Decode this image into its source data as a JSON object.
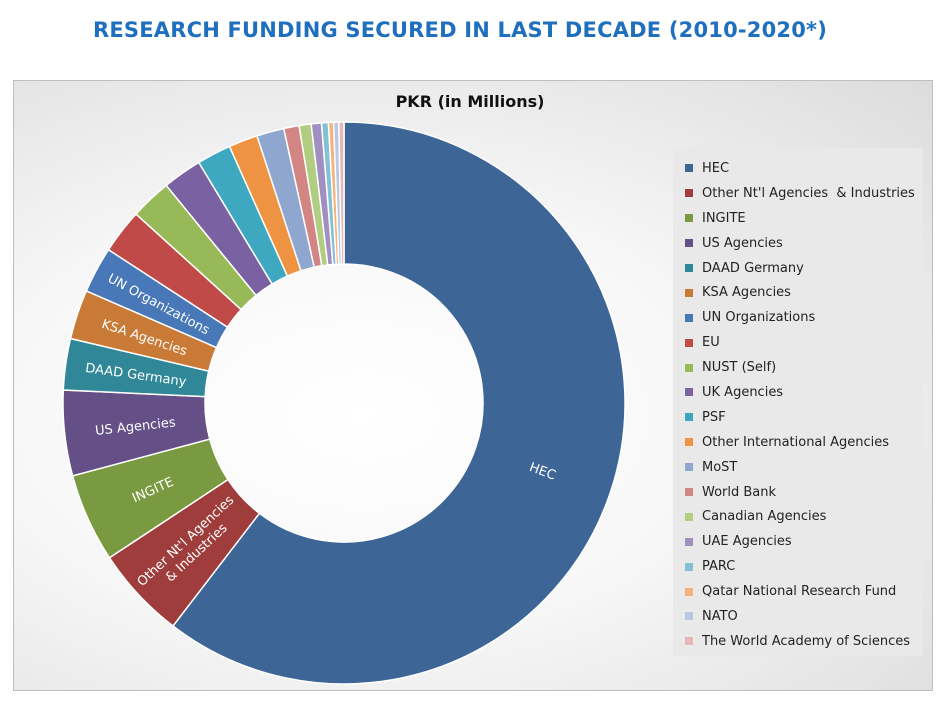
{
  "title": "RESEARCH FUNDING SECURED IN LAST DECADE (2010-2020*)",
  "chart_data": {
    "type": "pie",
    "title": "PKR (in Millions)",
    "donut": true,
    "legend_position": "right",
    "categories": [
      "HEC",
      "Other Nt'l Agencies  & Industries",
      "INGITE",
      "US Agencies",
      "DAAD Germany",
      "KSA Agencies",
      "UN Organizations",
      "EU",
      "NUST (Self)",
      "UK Agencies",
      "PSF",
      "Other International Agencies",
      "MoST",
      "World Bank",
      "Canadian Agencies",
      "UAE Agencies",
      "PARC",
      "Qatar National Research Fund",
      "NATO",
      "The World Academy of Sciences"
    ],
    "slice_labels": [
      "HEC",
      "Other Nt'l Agencies\n& Industries",
      "INGITE",
      "US Agencies",
      "DAAD Germany",
      "KSA Agencies",
      "UN Organizations",
      "",
      "",
      "",
      "",
      "",
      "",
      "",
      "",
      "",
      "",
      "",
      "",
      ""
    ],
    "values": [
      61.5,
      5.4,
      5.2,
      5.0,
      3.0,
      2.9,
      2.7,
      2.6,
      2.4,
      2.3,
      2.0,
      1.7,
      1.6,
      0.9,
      0.7,
      0.6,
      0.4,
      0.3,
      0.3,
      0.3
    ],
    "colors": [
      "#3d6696",
      "#9e3d3b",
      "#7a9a42",
      "#644f86",
      "#2f8797",
      "#c87a36",
      "#4878b8",
      "#bf4a47",
      "#98b957",
      "#7a62a2",
      "#3ea8c0",
      "#ee9342",
      "#8fa7cf",
      "#d38584",
      "#b1cd82",
      "#a08fc0",
      "#85c1d4",
      "#f6b27c",
      "#b9c7e1",
      "#e4b8b7"
    ]
  }
}
